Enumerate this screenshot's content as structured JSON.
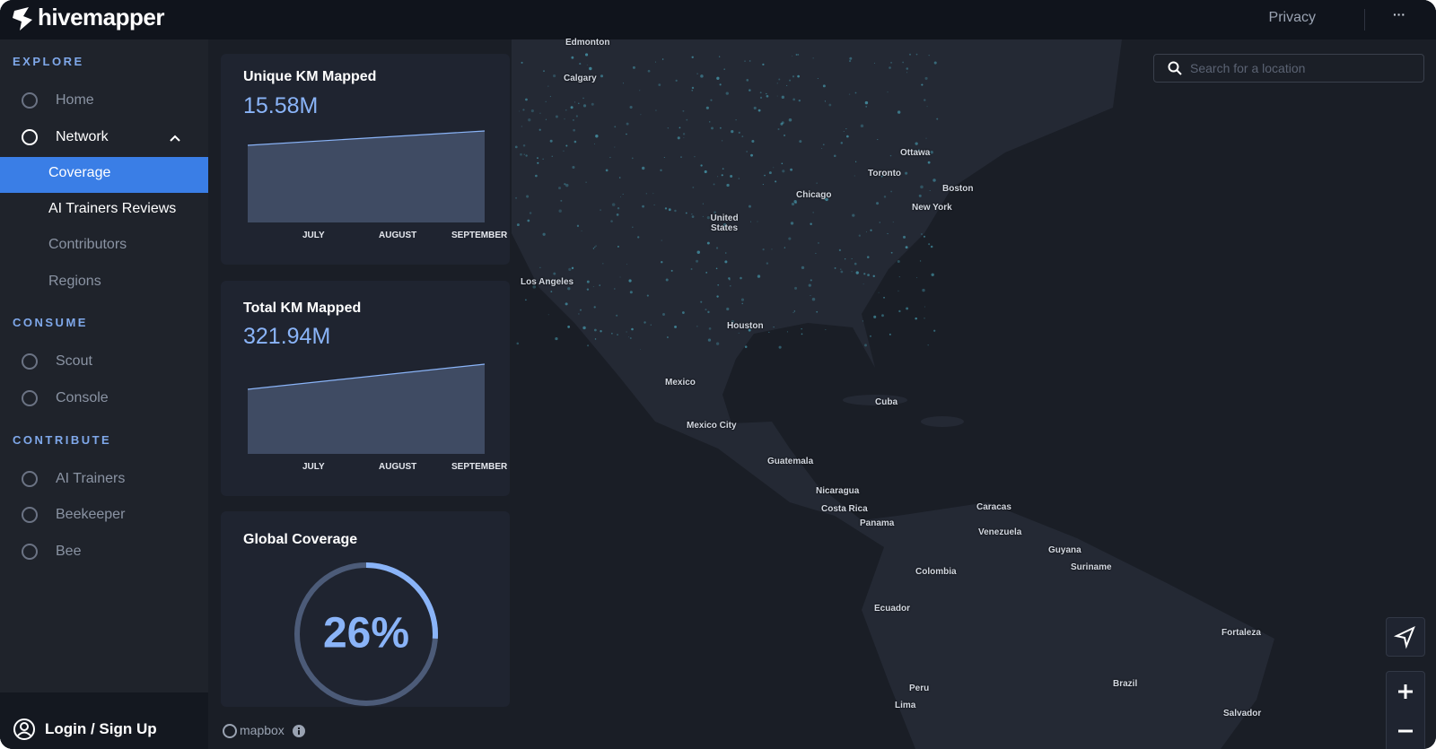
{
  "header": {
    "brand": "hivemapper",
    "privacy": "Privacy",
    "more": "···"
  },
  "sidebar": {
    "sections": [
      {
        "heading": "EXPLORE",
        "items": [
          "Home",
          "Network",
          "Coverage",
          "AI Trainers Reviews",
          "Contributors",
          "Regions"
        ]
      },
      {
        "heading": "CONSUME",
        "items": [
          "Scout",
          "Console"
        ]
      },
      {
        "heading": "CONTRIBUTE",
        "items": [
          "AI Trainers",
          "Beekeeper",
          "Bee"
        ]
      }
    ],
    "login": "Login / Sign Up"
  },
  "cards": [
    {
      "title": "Unique KM Mapped",
      "value": "15.58M",
      "months": [
        "JULY",
        "AUGUST",
        "SEPTEMBER"
      ]
    },
    {
      "title": "Total KM Mapped",
      "value": "321.94M",
      "months": [
        "JULY",
        "AUGUST",
        "SEPTEMBER"
      ]
    },
    {
      "title": "Global Coverage",
      "percent": 26,
      "percent_label": "26%"
    }
  ],
  "search": {
    "placeholder": "Search for a location"
  },
  "map": {
    "attribution": "mapbox",
    "labels": [
      "Edmonton",
      "Calgary",
      "Ottawa",
      "Toronto",
      "Chicago",
      "Boston",
      "New York",
      "United States",
      "Los Angeles",
      "Houston",
      "Mexico",
      "Cuba",
      "Mexico City",
      "Guatemala",
      "Nicaragua",
      "Costa Rica",
      "Panama",
      "Caracas",
      "Venezuela",
      "Guyana",
      "Suriname",
      "Colombia",
      "Ecuador",
      "Fortaleza",
      "Brazil",
      "Peru",
      "Lima",
      "Salvador"
    ]
  }
}
